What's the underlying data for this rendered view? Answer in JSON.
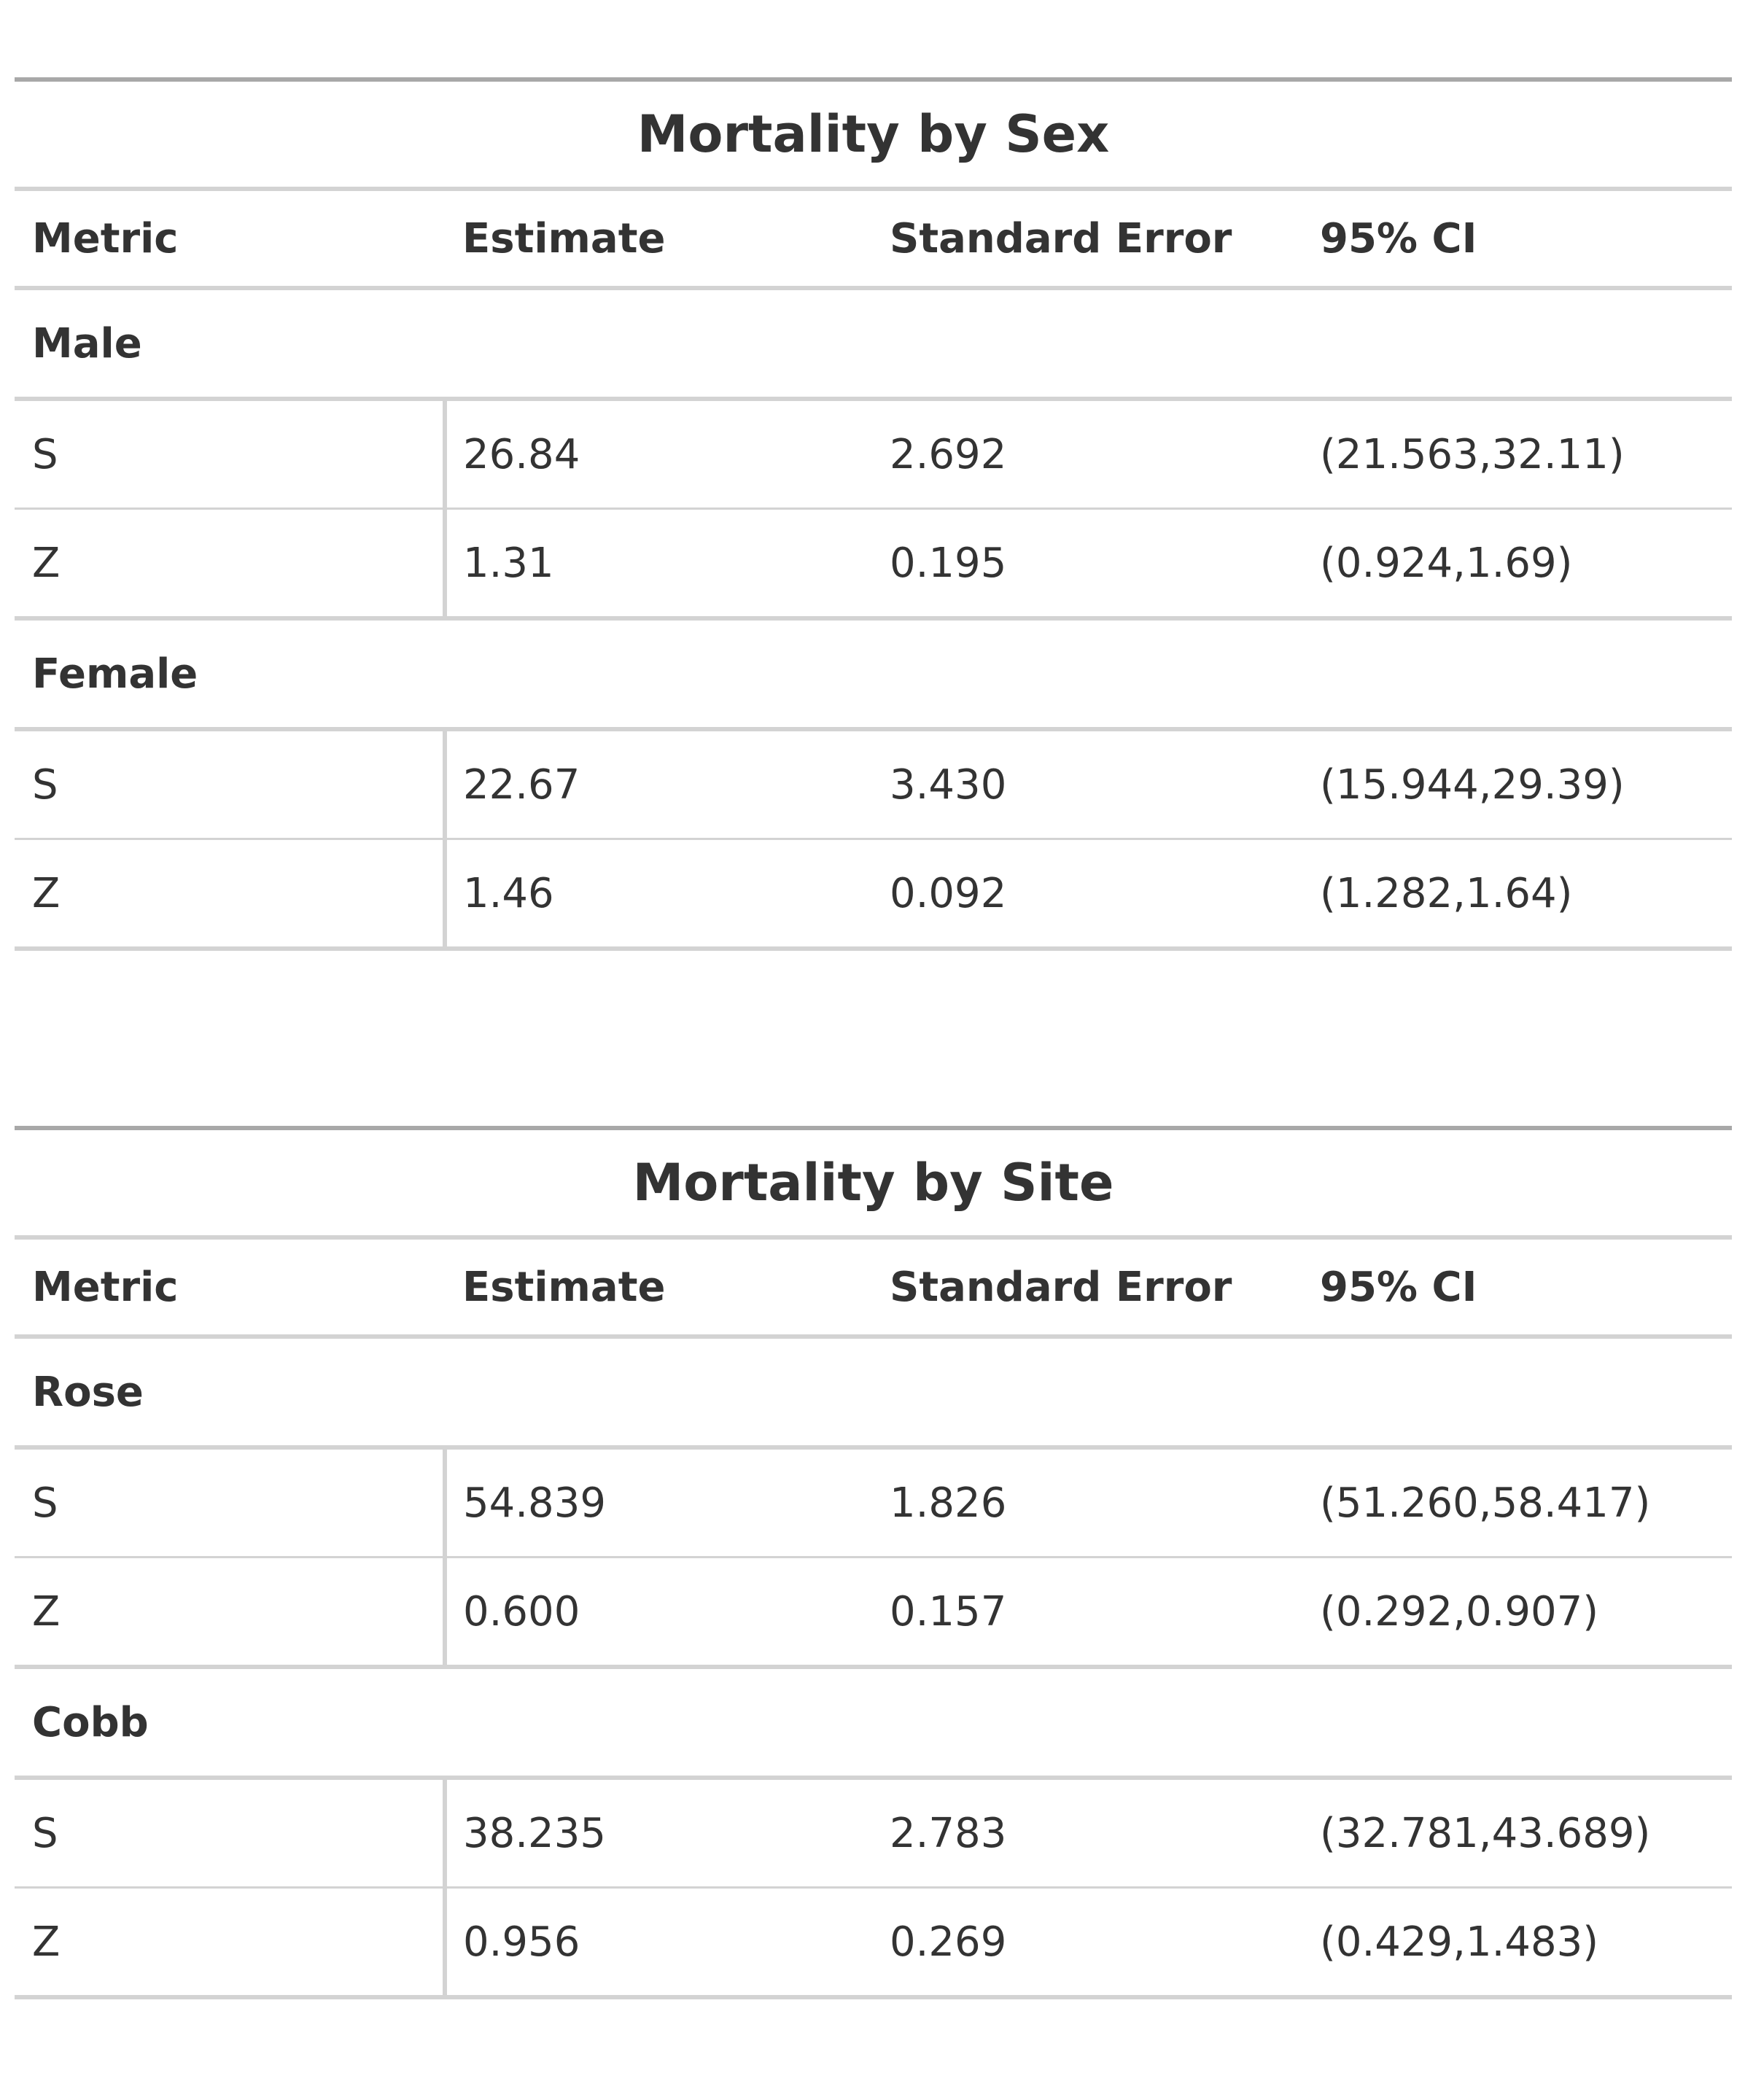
{
  "tables": [
    {
      "title": "Mortality by Sex",
      "columns": [
        "Metric",
        "Estimate",
        "Standard Error",
        "95% CI"
      ],
      "groups": [
        {
          "label": "Male",
          "rows": [
            {
              "metric": "S",
              "estimate": "26.84",
              "se": "2.692",
              "ci": "(21.563,32.11)"
            },
            {
              "metric": "Z",
              "estimate": "1.31",
              "se": "0.195",
              "ci": "(0.924,1.69)"
            }
          ]
        },
        {
          "label": "Female",
          "rows": [
            {
              "metric": "S",
              "estimate": "22.67",
              "se": "3.430",
              "ci": "(15.944,29.39)"
            },
            {
              "metric": "Z",
              "estimate": "1.46",
              "se": "0.092",
              "ci": "(1.282,1.64)"
            }
          ]
        }
      ]
    },
    {
      "title": "Mortality by Site",
      "columns": [
        "Metric",
        "Estimate",
        "Standard Error",
        "95% CI"
      ],
      "groups": [
        {
          "label": "Rose",
          "rows": [
            {
              "metric": "S",
              "estimate": "54.839",
              "se": "1.826",
              "ci": "(51.260,58.417)"
            },
            {
              "metric": "Z",
              "estimate": "0.600",
              "se": "0.157",
              "ci": "(0.292,0.907)"
            }
          ]
        },
        {
          "label": "Cobb",
          "rows": [
            {
              "metric": "S",
              "estimate": "38.235",
              "se": "2.783",
              "ci": "(32.781,43.689)"
            },
            {
              "metric": "Z",
              "estimate": "0.956",
              "se": "0.269",
              "ci": "(0.429,1.483)"
            }
          ]
        }
      ]
    }
  ]
}
